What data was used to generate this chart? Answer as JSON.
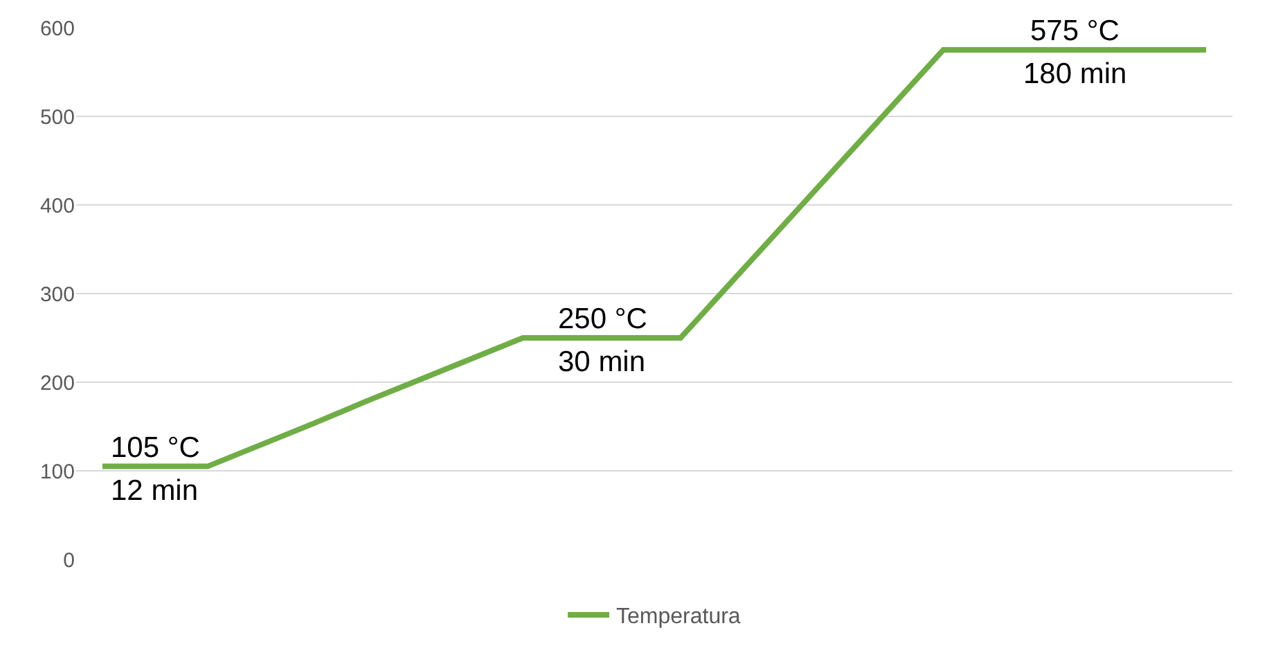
{
  "chart_data": {
    "type": "line",
    "categories": [
      null,
      null,
      null,
      null,
      null,
      null,
      null,
      null,
      null,
      null,
      null,
      null,
      null,
      null,
      null,
      null,
      null,
      null,
      null,
      null,
      null,
      null
    ],
    "series": [
      {
        "name": "Temperatura",
        "color": "#70ad47",
        "values": [
          105,
          105,
          105,
          129,
          153,
          178,
          202,
          226,
          250,
          250,
          250,
          250,
          315,
          380,
          445,
          510,
          575,
          575,
          575,
          575,
          575,
          575
        ]
      }
    ],
    "ylim": [
      0,
      600
    ],
    "yticks": [
      0,
      100,
      200,
      300,
      400,
      500,
      600
    ],
    "grid": "y",
    "legend": "bottom",
    "marker": "none",
    "line_style": "solid",
    "annotations": [
      {
        "text": "105 °C",
        "y": 105
      },
      {
        "text": "12 min",
        "y": 105
      },
      {
        "text": "250 °C",
        "y": 250
      },
      {
        "text": "30 min",
        "y": 250
      },
      {
        "text": "575 °C",
        "y": 575
      },
      {
        "text": "180 min",
        "y": 575
      }
    ]
  }
}
